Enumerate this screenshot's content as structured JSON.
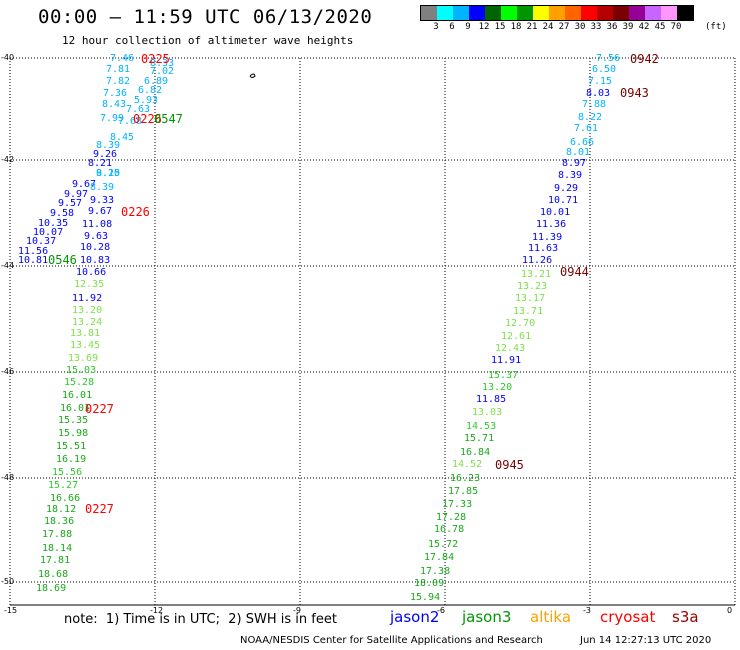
{
  "title": "00:00 – 11:59 UTC 06/13/2020",
  "subtitle": "12 hour collection of altimeter wave heights",
  "scale": {
    "colors": [
      "#808080",
      "#00ffff",
      "#00b4ff",
      "#0000ff",
      "#006400",
      "#00ff00",
      "#009600",
      "#ffff00",
      "#ffa000",
      "#ff6400",
      "#ff0000",
      "#b40000",
      "#780000",
      "#960096",
      "#c864ff",
      "#ff96ff",
      "#000000"
    ],
    "labels": [
      "3",
      "6",
      "9",
      "12",
      "15",
      "18",
      "21",
      "24",
      "27",
      "30",
      "33",
      "36",
      "39",
      "42",
      "45",
      "70"
    ],
    "unit": "(ft)"
  },
  "axes": {
    "y_ticks": [
      "-40",
      "-42",
      "-44",
      "-46",
      "-48",
      "-50"
    ],
    "x_ticks": [
      "-15",
      "-12",
      "-9",
      "-6",
      "-3",
      "0"
    ]
  },
  "tracks": [
    {
      "id": "left",
      "values": [
        "7.46",
        "7.81",
        "7.82",
        "7.36",
        "8.43",
        "7.99",
        "9.26",
        "8.21",
        "8.15",
        "9.67",
        "9.97",
        "9.57",
        "9.58",
        "10.35",
        "10.07",
        "10.37",
        "11.56",
        "10.81",
        "10.83",
        "10.66",
        "12.35",
        "11.92",
        "13.20",
        "13.24",
        "13.81",
        "13.45",
        "13.69",
        "15.03",
        "15.28",
        "16.01",
        "16.01",
        "15.35",
        "15.98",
        "15.51",
        "16.19",
        "15.56",
        "15.27",
        "16.66",
        "18.12",
        "18.36",
        "17.88",
        "18.14",
        "17.81",
        "18.68",
        "18.69"
      ],
      "colors": [
        "#00b4ff",
        "#00b4ff",
        "#00b4ff",
        "#00b4ff",
        "#00b4ff",
        "#00b4ff",
        "#0000ff",
        "#0000ff",
        "#00b4ff",
        "#0000ff",
        "#0000ff",
        "#0000ff",
        "#0000ff",
        "#0000ff",
        "#0000ff",
        "#0000ff",
        "#0000ff",
        "#0000ff",
        "#0000ff",
        "#0000ff",
        "#7fe04a",
        "#0000ff",
        "#7fe04a",
        "#7fe04a",
        "#7fe04a",
        "#7fe04a",
        "#7fe04a",
        "#2ec82e",
        "#2ec82e",
        "#1aa81a",
        "#1aa81a",
        "#1aa81a",
        "#1aa81a",
        "#1aa81a",
        "#1aa81a",
        "#2ec82e",
        "#2ec82e",
        "#1aa81a",
        "#1aa81a",
        "#1aa81a",
        "#1aa81a",
        "#1aa81a",
        "#1aa81a",
        "#1aa81a",
        "#1aa81a"
      ]
    },
    {
      "id": "left2",
      "values": [
        "8.33",
        "7.02",
        "6.89",
        "6.82",
        "5.93",
        "7.63",
        "7.68",
        "8.45",
        "8.39",
        "9.20",
        "8.39",
        "9.33",
        "9.67",
        "11.08",
        "9.63",
        "10.28"
      ],
      "colors": [
        "#00b4ff",
        "#00b4ff",
        "#00b4ff",
        "#00b4ff",
        "#00b4ff",
        "#00b4ff",
        "#00b4ff",
        "#00b4ff",
        "#00b4ff",
        "#00b4ff",
        "#00b4ff",
        "#0000ff",
        "#0000ff",
        "#0000ff",
        "#0000ff",
        "#0000ff"
      ]
    },
    {
      "id": "right",
      "values": [
        "7.56",
        "6.50",
        "7.15",
        "8.03",
        "7.88",
        "8.22",
        "7.61",
        "6.66",
        "8.01",
        "8.97",
        "8.39",
        "9.29",
        "10.71",
        "10.01",
        "11.36",
        "11.39",
        "11.63",
        "11.26",
        "13.21",
        "13.23",
        "13.17",
        "13.71",
        "12.70",
        "12.61",
        "12.43",
        "11.91",
        "15.37",
        "13.20",
        "11.85",
        "13.03",
        "14.53",
        "15.71",
        "16.84",
        "14.52",
        "16.23",
        "17.85",
        "17.33",
        "17.28",
        "16.78",
        "15.72",
        "17.84",
        "17.38",
        "18.09",
        "15.94"
      ],
      "colors": [
        "#00b4ff",
        "#00b4ff",
        "#00b4ff",
        "#0000ff",
        "#00b4ff",
        "#00b4ff",
        "#00b4ff",
        "#00b4ff",
        "#00b4ff",
        "#0000ff",
        "#0000ff",
        "#0000ff",
        "#0000ff",
        "#0000ff",
        "#0000ff",
        "#0000ff",
        "#0000ff",
        "#0000ff",
        "#7fe04a",
        "#7fe04a",
        "#7fe04a",
        "#7fe04a",
        "#7fe04a",
        "#7fe04a",
        "#7fe04a",
        "#0000ff",
        "#2ec82e",
        "#2ec82e",
        "#0000ff",
        "#7fe04a",
        "#2ec82e",
        "#1aa81a",
        "#1aa81a",
        "#7fe04a",
        "#1aa81a",
        "#1aa81a",
        "#1aa81a",
        "#1aa81a",
        "#1aa81a",
        "#1aa81a",
        "#1aa81a",
        "#1aa81a",
        "#1aa81a",
        "#1aa81a"
      ]
    }
  ],
  "time_labels": [
    {
      "text": "0225",
      "color": "#ff0000"
    },
    {
      "text": "0226",
      "color": "#ff0000"
    },
    {
      "text": "0547",
      "color": "#009600"
    },
    {
      "text": "0226",
      "color": "#ff0000"
    },
    {
      "text": "0546",
      "color": "#009600"
    },
    {
      "text": "0227",
      "color": "#ff0000"
    },
    {
      "text": "0227",
      "color": "#ff0000"
    },
    {
      "text": "0942",
      "color": "#780000"
    },
    {
      "text": "0943",
      "color": "#780000"
    },
    {
      "text": "0944",
      "color": "#780000"
    },
    {
      "text": "0945",
      "color": "#780000"
    }
  ],
  "note": "note:  1) Time is in UTC;  2) SWH is in feet",
  "legend": [
    {
      "name": "jason2",
      "color": "#0000ff"
    },
    {
      "name": "jason3",
      "color": "#009600"
    },
    {
      "name": "altika",
      "color": "#ffa000"
    },
    {
      "name": "cryosat",
      "color": "#ff0000"
    },
    {
      "name": "s3a",
      "color": "#960000"
    }
  ],
  "credit": "NOAA/NESDIS Center for Satellite Applications and Research",
  "stamp": "Jun 14 12:27:13 UTC 2020"
}
